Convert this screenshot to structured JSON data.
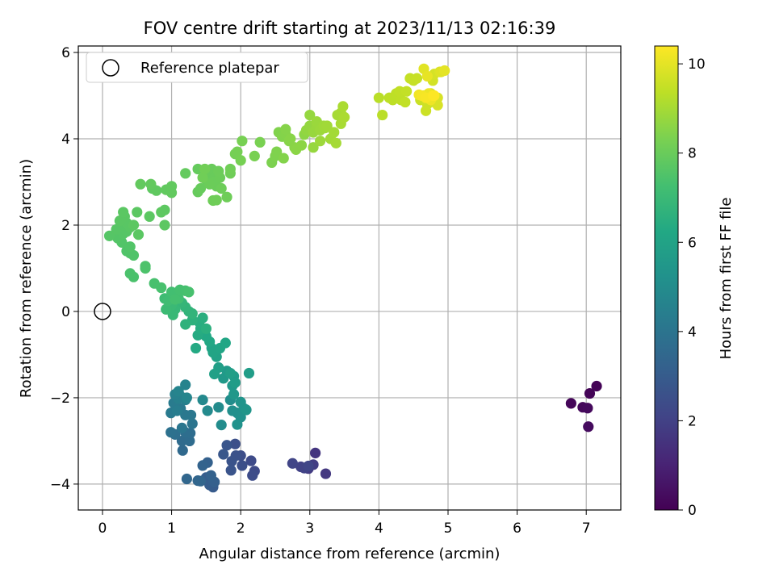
{
  "chart_data": {
    "type": "scatter",
    "title": "FOV centre drift starting at 2023/11/13 02:16:39",
    "xlabel": "Angular distance from reference (arcmin)",
    "ylabel": "Rotation from reference (arcmin)",
    "xlim": [
      -0.35,
      7.5
    ],
    "ylim": [
      -4.6,
      6.15
    ],
    "xticks": [
      "0",
      "1",
      "2",
      "3",
      "4",
      "5",
      "6",
      "7"
    ],
    "yticks": [
      "−4",
      "−2",
      "0",
      "2",
      "4",
      "6"
    ],
    "grid": true,
    "legend": {
      "placement": "top-left",
      "entries": [
        "Reference platepar"
      ]
    },
    "reference_point": {
      "x": 0,
      "y": 0,
      "label": "Reference platepar"
    },
    "colorbar": {
      "label": "Hours from first FF file",
      "range": [
        0,
        10.4
      ],
      "ticks": [
        "0",
        "2",
        "4",
        "6",
        "8",
        "10"
      ],
      "colormap": "viridis"
    },
    "points": [
      [
        7.15,
        -1.73,
        0.05
      ],
      [
        7.05,
        -1.9,
        0.1
      ],
      [
        6.78,
        -2.13,
        0.15
      ],
      [
        6.95,
        -2.22,
        0.2
      ],
      [
        7.02,
        -2.24,
        0.25
      ],
      [
        7.03,
        -2.67,
        0.3
      ],
      [
        3.08,
        -3.28,
        1.6
      ],
      [
        3.23,
        -3.76,
        1.7
      ],
      [
        2.98,
        -3.64,
        1.8
      ],
      [
        3.05,
        -3.55,
        1.9
      ],
      [
        2.87,
        -3.6,
        2.0
      ],
      [
        2.92,
        -3.63,
        2.05
      ],
      [
        2.75,
        -3.52,
        2.1
      ],
      [
        2.98,
        -3.58,
        2.15
      ],
      [
        2.2,
        -3.7,
        2.3
      ],
      [
        2.15,
        -3.46,
        2.35
      ],
      [
        2.17,
        -3.8,
        2.4
      ],
      [
        2.0,
        -3.34,
        2.45
      ],
      [
        2.02,
        -3.57,
        2.5
      ],
      [
        1.92,
        -3.07,
        2.55
      ],
      [
        1.93,
        -3.34,
        2.6
      ],
      [
        1.87,
        -3.47,
        2.65
      ],
      [
        1.86,
        -3.68,
        2.7
      ],
      [
        1.8,
        -3.1,
        2.75
      ],
      [
        1.75,
        -3.31,
        2.8
      ],
      [
        1.6,
        -4.07,
        2.95
      ],
      [
        1.55,
        -4.02,
        3.0
      ],
      [
        1.5,
        -3.85,
        3.05
      ],
      [
        1.6,
        -3.95,
        3.1
      ],
      [
        1.62,
        -3.95,
        3.15
      ],
      [
        1.52,
        -3.5,
        3.2
      ],
      [
        1.57,
        -3.8,
        3.25
      ],
      [
        1.45,
        -3.57,
        3.3
      ],
      [
        1.42,
        -3.93,
        3.35
      ],
      [
        1.38,
        -3.92,
        3.4
      ],
      [
        1.22,
        -3.88,
        3.45
      ],
      [
        1.16,
        -3.22,
        3.55
      ],
      [
        1.15,
        -3.0,
        3.6
      ],
      [
        1.26,
        -3.0,
        3.65
      ],
      [
        1.27,
        -2.82,
        3.7
      ],
      [
        1.2,
        -2.8,
        3.75
      ],
      [
        1.05,
        -2.85,
        3.8
      ],
      [
        0.99,
        -2.8,
        3.85
      ],
      [
        1.3,
        -2.6,
        4.0
      ],
      [
        1.15,
        -2.7,
        4.05
      ],
      [
        1.28,
        -2.4,
        4.1
      ],
      [
        1.2,
        -2.4,
        4.15
      ],
      [
        1.13,
        -2.25,
        4.2
      ],
      [
        0.99,
        -2.35,
        4.25
      ],
      [
        1.03,
        -2.12,
        4.3
      ],
      [
        1.08,
        -2.3,
        4.35
      ],
      [
        1.14,
        -1.98,
        4.4
      ],
      [
        1.2,
        -2.05,
        4.45
      ],
      [
        1.1,
        -2.02,
        4.5
      ],
      [
        1.05,
        -1.92,
        4.55
      ],
      [
        1.2,
        -1.7,
        4.6
      ],
      [
        1.1,
        -1.85,
        4.65
      ],
      [
        1.22,
        -2.0,
        4.7
      ],
      [
        1.45,
        -2.05,
        4.85
      ],
      [
        1.52,
        -2.3,
        4.9
      ],
      [
        1.68,
        -2.22,
        4.95
      ],
      [
        1.72,
        -2.63,
        5.0
      ],
      [
        1.85,
        -2.05,
        5.05
      ],
      [
        1.88,
        -2.3,
        5.1
      ],
      [
        1.95,
        -2.35,
        5.15
      ],
      [
        2.0,
        -2.45,
        5.2
      ],
      [
        1.95,
        -2.62,
        5.25
      ],
      [
        2.05,
        -2.25,
        5.3
      ],
      [
        2.0,
        -2.1,
        5.35
      ],
      [
        2.08,
        -2.28,
        5.4
      ],
      [
        1.9,
        -1.92,
        5.45
      ],
      [
        1.88,
        -1.72,
        5.5
      ],
      [
        1.75,
        -1.55,
        5.55
      ],
      [
        1.8,
        -1.38,
        5.6
      ],
      [
        1.9,
        -1.5,
        5.65
      ],
      [
        1.92,
        -1.65,
        5.7
      ],
      [
        2.12,
        -1.43,
        5.75
      ],
      [
        1.85,
        -1.43,
        5.8
      ],
      [
        1.68,
        -1.3,
        5.85
      ],
      [
        1.62,
        -1.45,
        5.9
      ],
      [
        1.65,
        -1.05,
        5.95
      ],
      [
        1.58,
        -0.85,
        6.0
      ],
      [
        1.6,
        -0.95,
        6.05
      ],
      [
        1.7,
        -0.85,
        6.1
      ],
      [
        1.78,
        -0.73,
        6.15
      ],
      [
        1.55,
        -0.7,
        6.2
      ],
      [
        1.5,
        -0.58,
        6.25
      ],
      [
        1.35,
        -0.85,
        6.3
      ],
      [
        1.38,
        -0.55,
        6.35
      ],
      [
        1.42,
        -0.4,
        6.4
      ],
      [
        1.4,
        -0.25,
        6.45
      ],
      [
        1.45,
        -0.15,
        6.5
      ],
      [
        1.5,
        -0.4,
        6.55
      ],
      [
        1.3,
        -0.2,
        6.6
      ],
      [
        1.2,
        -0.3,
        6.65
      ],
      [
        1.25,
        0.0,
        6.7
      ],
      [
        1.3,
        -0.05,
        6.75
      ],
      [
        1.2,
        0.1,
        6.8
      ],
      [
        1.15,
        0.2,
        6.85
      ],
      [
        1.05,
        0.05,
        6.9
      ],
      [
        1.02,
        -0.08,
        6.95
      ],
      [
        1.0,
        0.15,
        7.0
      ],
      [
        0.92,
        0.05,
        7.05
      ],
      [
        0.9,
        0.3,
        7.1
      ],
      [
        0.95,
        0.25,
        7.15
      ],
      [
        1.05,
        0.35,
        7.2
      ],
      [
        1.0,
        0.45,
        7.25
      ],
      [
        1.1,
        0.3,
        7.25
      ],
      [
        1.12,
        0.5,
        7.3
      ],
      [
        1.2,
        0.48,
        7.3
      ],
      [
        1.25,
        0.45,
        7.35
      ],
      [
        0.85,
        0.55,
        7.35
      ],
      [
        0.75,
        0.65,
        7.35
      ],
      [
        1.05,
        0.28,
        7.3
      ],
      [
        0.45,
        0.8,
        7.4
      ],
      [
        0.4,
        0.88,
        7.42
      ],
      [
        0.62,
        1.0,
        7.45
      ],
      [
        0.62,
        1.05,
        7.45
      ],
      [
        0.45,
        1.3,
        7.5
      ],
      [
        0.4,
        1.35,
        7.5
      ],
      [
        0.35,
        1.4,
        7.52
      ],
      [
        0.4,
        1.5,
        7.55
      ],
      [
        0.28,
        1.6,
        7.55
      ],
      [
        0.22,
        1.7,
        7.58
      ],
      [
        0.3,
        1.8,
        7.6
      ],
      [
        0.1,
        1.75,
        7.62
      ],
      [
        0.35,
        1.85,
        7.62
      ],
      [
        0.2,
        1.9,
        7.65
      ],
      [
        0.3,
        2.0,
        7.65
      ],
      [
        0.4,
        1.95,
        7.68
      ],
      [
        0.35,
        2.05,
        7.68
      ],
      [
        0.25,
        2.1,
        7.7
      ],
      [
        0.32,
        2.2,
        7.7
      ],
      [
        0.3,
        2.3,
        7.72
      ],
      [
        0.52,
        1.78,
        7.72
      ],
      [
        0.45,
        2.0,
        7.74
      ],
      [
        0.5,
        2.3,
        7.75
      ],
      [
        0.68,
        2.2,
        7.75
      ],
      [
        0.9,
        2.0,
        7.76
      ],
      [
        0.85,
        2.3,
        7.78
      ],
      [
        0.9,
        2.35,
        7.78
      ],
      [
        0.72,
        2.85,
        7.8
      ],
      [
        0.78,
        2.8,
        7.82
      ],
      [
        0.92,
        2.82,
        7.84
      ],
      [
        1.0,
        2.75,
        7.86
      ],
      [
        1.0,
        2.9,
        7.86
      ],
      [
        0.55,
        2.95,
        7.88
      ],
      [
        0.7,
        2.95,
        7.88
      ],
      [
        1.2,
        3.2,
        7.9
      ],
      [
        1.38,
        3.3,
        7.92
      ],
      [
        1.38,
        2.77,
        7.94
      ],
      [
        1.42,
        2.85,
        7.95
      ],
      [
        1.5,
        3.05,
        7.96
      ],
      [
        1.52,
        3.25,
        7.98
      ],
      [
        1.58,
        3.3,
        8.0
      ],
      [
        1.62,
        3.1,
        8.0
      ],
      [
        1.65,
        2.9,
        8.02
      ],
      [
        1.6,
        3.0,
        8.02
      ],
      [
        1.55,
        2.95,
        8.04
      ],
      [
        1.7,
        3.1,
        8.04
      ],
      [
        1.68,
        3.25,
        8.05
      ],
      [
        1.72,
        2.85,
        8.06
      ],
      [
        1.8,
        2.65,
        8.08
      ],
      [
        1.6,
        2.57,
        8.08
      ],
      [
        1.65,
        2.58,
        8.1
      ],
      [
        1.85,
        3.2,
        8.1
      ],
      [
        1.85,
        3.3,
        8.12
      ],
      [
        1.45,
        3.1,
        8.12
      ],
      [
        1.48,
        3.3,
        8.14
      ],
      [
        1.92,
        3.65,
        8.2
      ],
      [
        1.95,
        3.7,
        8.22
      ],
      [
        2.0,
        3.5,
        8.24
      ],
      [
        2.02,
        3.95,
        8.26
      ],
      [
        2.2,
        3.6,
        8.28
      ],
      [
        2.28,
        3.92,
        8.3
      ],
      [
        2.45,
        3.45,
        8.35
      ],
      [
        2.5,
        3.6,
        8.38
      ],
      [
        2.52,
        3.7,
        8.4
      ],
      [
        2.55,
        4.15,
        8.42
      ],
      [
        2.6,
        4.05,
        8.44
      ],
      [
        2.62,
        3.55,
        8.46
      ],
      [
        2.65,
        4.1,
        8.48
      ],
      [
        2.65,
        4.22,
        8.5
      ],
      [
        2.7,
        3.95,
        8.52
      ],
      [
        2.72,
        4.0,
        8.54
      ],
      [
        2.78,
        3.8,
        8.56
      ],
      [
        2.8,
        3.75,
        8.58
      ],
      [
        2.88,
        3.85,
        8.6
      ],
      [
        2.92,
        4.1,
        8.62
      ],
      [
        2.95,
        4.2,
        8.7
      ],
      [
        3.0,
        4.3,
        8.72
      ],
      [
        3.0,
        4.55,
        8.74
      ],
      [
        3.05,
        3.8,
        8.76
      ],
      [
        3.05,
        4.15,
        8.78
      ],
      [
        3.1,
        4.3,
        8.8
      ],
      [
        3.1,
        4.4,
        8.82
      ],
      [
        3.15,
        4.2,
        8.84
      ],
      [
        3.15,
        3.95,
        8.86
      ],
      [
        3.2,
        4.3,
        8.88
      ],
      [
        3.22,
        4.25,
        8.9
      ],
      [
        3.25,
        4.3,
        8.92
      ],
      [
        3.3,
        4.0,
        8.94
      ],
      [
        3.35,
        4.15,
        8.96
      ],
      [
        3.38,
        3.9,
        8.98
      ],
      [
        3.4,
        4.55,
        9.0
      ],
      [
        3.45,
        4.6,
        9.02
      ],
      [
        3.45,
        4.35,
        9.04
      ],
      [
        3.48,
        4.75,
        9.06
      ],
      [
        3.5,
        4.5,
        9.08
      ],
      [
        4.0,
        4.95,
        9.3
      ],
      [
        4.05,
        4.55,
        9.32
      ],
      [
        4.15,
        4.95,
        9.34
      ],
      [
        4.2,
        4.9,
        9.36
      ],
      [
        4.25,
        5.05,
        9.38
      ],
      [
        4.32,
        4.9,
        9.4
      ],
      [
        4.3,
        5.1,
        9.42
      ],
      [
        4.38,
        4.85,
        9.44
      ],
      [
        4.4,
        5.1,
        9.46
      ],
      [
        4.45,
        5.4,
        9.48
      ],
      [
        4.5,
        5.35,
        9.5
      ],
      [
        4.55,
        5.4,
        9.52
      ],
      [
        4.6,
        4.9,
        9.55
      ],
      [
        4.65,
        5.0,
        9.58
      ],
      [
        4.68,
        4.65,
        9.6
      ],
      [
        4.7,
        4.8,
        9.62
      ],
      [
        4.72,
        5.0,
        9.65
      ],
      [
        4.75,
        5.05,
        9.68
      ],
      [
        4.78,
        5.35,
        9.7
      ],
      [
        4.8,
        4.85,
        9.72
      ],
      [
        4.8,
        5.5,
        9.75
      ],
      [
        4.85,
        4.95,
        9.78
      ],
      [
        4.85,
        4.78,
        9.8
      ],
      [
        4.88,
        5.55,
        9.85
      ],
      [
        4.9,
        5.55,
        9.9
      ],
      [
        4.65,
        5.62,
        9.95
      ],
      [
        4.95,
        5.58,
        10.0
      ],
      [
        4.7,
        5.45,
        10.05
      ],
      [
        4.72,
        5.05,
        10.1
      ],
      [
        4.75,
        4.9,
        10.15
      ],
      [
        4.58,
        5.02,
        10.2
      ],
      [
        4.62,
        5.0,
        10.25
      ],
      [
        4.68,
        4.95,
        10.3
      ],
      [
        4.78,
        5.0,
        10.35
      ],
      [
        4.8,
        5.0,
        10.38
      ]
    ]
  }
}
